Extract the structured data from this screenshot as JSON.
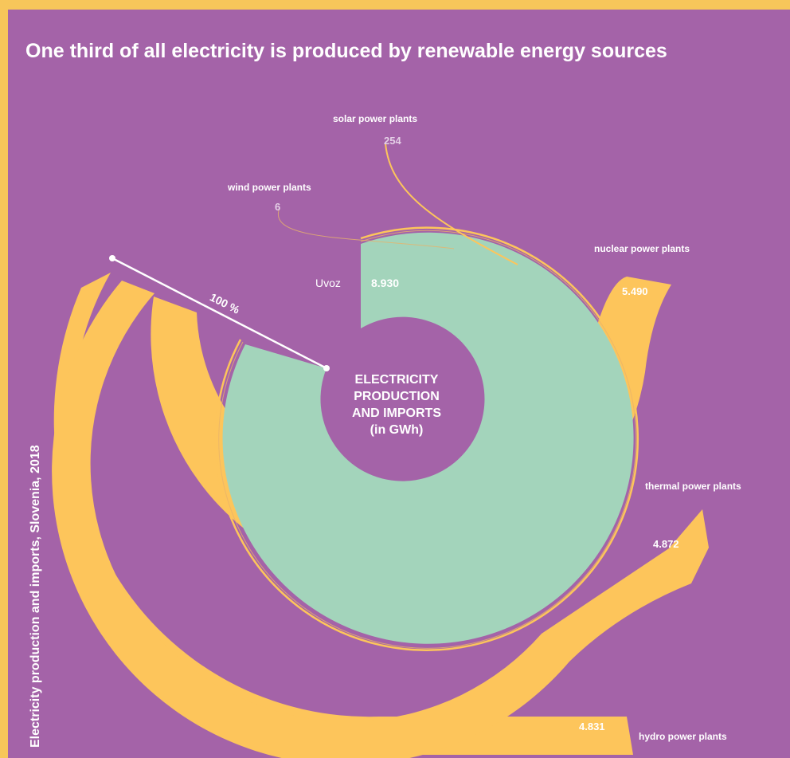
{
  "colors": {
    "background": "#a463a8",
    "outer_border": "#f7c65a",
    "imports": "#a3d4bb",
    "renewable_and_production": "#fdc55b",
    "text": "#ffffff",
    "faint_text": "#e4cfe6"
  },
  "title": "One third of all electricity is produced by renewable energy sources",
  "vertical_label": "Electricity production and imports, Slovenia, 2018",
  "chart_data": {
    "type": "radial-sankey",
    "center_label": [
      "ELECTRICITY",
      "PRODUCTION",
      "AND IMPORTS",
      "(in GWh)"
    ],
    "unit": "GWh",
    "full_circle_label": "100 %",
    "series": [
      {
        "name": "Uvoz",
        "value": 8930,
        "display": "8.930"
      },
      {
        "name": "nuclear power plants",
        "value": 5490,
        "display": "5.490"
      },
      {
        "name": "thermal power plants",
        "value": 4872,
        "display": "4.872"
      },
      {
        "name": "hydro power plants",
        "value": 4831,
        "display": "4.831"
      },
      {
        "name": "solar power plants",
        "value": 254,
        "display": "254"
      },
      {
        "name": "wind power plants",
        "value": 6,
        "display": "6"
      }
    ]
  }
}
